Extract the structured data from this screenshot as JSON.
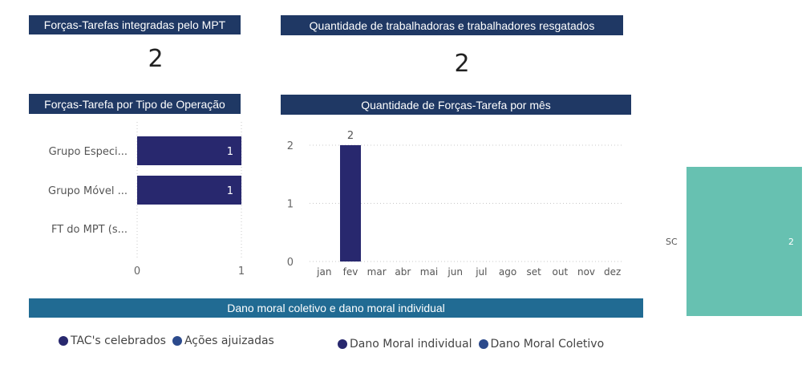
{
  "cards": {
    "forcas_tarefas": {
      "title": "Forças-Tarefas integradas pelo MPT",
      "value": "2"
    },
    "resgatados": {
      "title": "Quantidade de trabalhadoras e trabalhadores resgatados",
      "value": "2"
    }
  },
  "chart_titles": {
    "por_tipo": "Forças-Tarefa por Tipo de Operação",
    "por_mes": "Quantidade de Forças-Tarefa por mês",
    "dano_moral": "Dano moral coletivo e dano moral individual"
  },
  "colors": {
    "title_bar": "#1f3864",
    "title_bar_teal": "#216b93",
    "bar": "#28286e",
    "treemap": "#67c1b1",
    "legend_navy": "#28286e",
    "legend_blue": "#2c4a8c"
  },
  "legends": {
    "left": [
      {
        "label": "TAC's celebrados",
        "color": "#28286e"
      },
      {
        "label": "Ações ajuizadas",
        "color": "#2c4a8c"
      }
    ],
    "right": [
      {
        "label": "Dano Moral individual",
        "color": "#28286e"
      },
      {
        "label": "Dano Moral Coletivo",
        "color": "#2c4a8c"
      }
    ]
  },
  "chart_data": [
    {
      "type": "bar",
      "orientation": "horizontal",
      "categories": [
        "Grupo Especi...",
        "Grupo Móvel ...",
        "FT do MPT (s..."
      ],
      "values": [
        1,
        1,
        0
      ],
      "data_labels": [
        "1",
        "1",
        ""
      ],
      "xlim": [
        0,
        1
      ],
      "x_ticks": [
        "0",
        "1"
      ],
      "grid": true
    },
    {
      "type": "bar",
      "categories": [
        "jan",
        "fev",
        "mar",
        "abr",
        "mai",
        "jun",
        "jul",
        "ago",
        "set",
        "out",
        "nov",
        "dez"
      ],
      "values": [
        0,
        2,
        0,
        0,
        0,
        0,
        0,
        0,
        0,
        0,
        0,
        0
      ],
      "data_labels": [
        "",
        "2",
        "",
        "",
        "",
        "",
        "",
        "",
        "",
        "",
        "",
        ""
      ],
      "ylim": [
        0,
        2
      ],
      "y_ticks": [
        "0",
        "1",
        "2"
      ],
      "grid": true
    },
    {
      "type": "treemap",
      "categories": [
        "SC"
      ],
      "values": [
        2
      ],
      "data_labels": [
        "2"
      ]
    }
  ]
}
